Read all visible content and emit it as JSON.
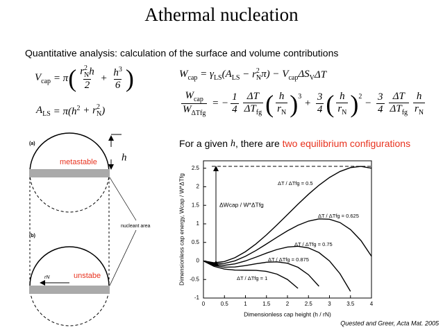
{
  "title": "Athermal nucleation",
  "subtitle": "Quantitative analysis: calculation of the surface and volume contributions",
  "equations": [
    [
      {
        "t": "V",
        "sub": "cap"
      },
      {
        "t": " = π"
      },
      {
        "big": "("
      },
      {
        "num": [
          {
            "t": "r",
            "sub": "N",
            "sup": "2"
          },
          {
            "t": "h"
          }
        ],
        "den": [
          {
            "t": "2"
          }
        ]
      },
      {
        "t": " + "
      },
      {
        "num": [
          {
            "t": "h",
            "sup": "3"
          }
        ],
        "den": [
          {
            "t": "6"
          }
        ]
      },
      {
        "big": ")"
      }
    ],
    [
      {
        "t": "A",
        "sub": "LS"
      },
      {
        "t": " = π(h",
        "sup": "2"
      },
      {
        "t": " + r",
        "sub": "N",
        "sup": "2"
      },
      {
        "t": ")"
      }
    ],
    [
      {
        "t": "W",
        "sub": "cap"
      },
      {
        "t": " = γ",
        "sub": "LS"
      },
      {
        "t": "(A",
        "sub": "LS"
      },
      {
        "t": " − r",
        "sub": "N",
        "sup": "2"
      },
      {
        "t": "π) − V",
        "sub": "cap"
      },
      {
        "t": "ΔS",
        "sub": "V"
      },
      {
        "t": "ΔT"
      }
    ],
    [
      {
        "num": [
          {
            "t": "W",
            "sub": "cap"
          }
        ],
        "den": [
          {
            "t": "W",
            "sub": "ΔTfg"
          }
        ]
      },
      {
        "t": " = −"
      },
      {
        "num": [
          {
            "t": "1"
          }
        ],
        "den": [
          {
            "t": "4"
          }
        ]
      },
      {
        "num": [
          {
            "t": "ΔT"
          }
        ],
        "den": [
          {
            "t": "ΔT",
            "sub": "fg"
          }
        ]
      },
      {
        "big": "("
      },
      {
        "num": [
          {
            "t": "h"
          }
        ],
        "den": [
          {
            "t": "r",
            "sub": "N"
          }
        ]
      },
      {
        "big": ")",
        "sup": "3"
      },
      {
        "t": " + "
      },
      {
        "num": [
          {
            "t": "3"
          }
        ],
        "den": [
          {
            "t": "4"
          }
        ]
      },
      {
        "big": "("
      },
      {
        "num": [
          {
            "t": "h"
          }
        ],
        "den": [
          {
            "t": "r",
            "sub": "N"
          }
        ]
      },
      {
        "big": ")",
        "sup": "2"
      },
      {
        "t": " − "
      },
      {
        "num": [
          {
            "t": "3"
          }
        ],
        "den": [
          {
            "t": "4"
          }
        ]
      },
      {
        "num": [
          {
            "t": "ΔT"
          }
        ],
        "den": [
          {
            "t": "ΔT",
            "sub": "fg"
          }
        ]
      },
      {
        "num": [
          {
            "t": "h"
          }
        ],
        "den": [
          {
            "t": "r",
            "sub": "N"
          }
        ]
      }
    ]
  ],
  "statement": {
    "before": "For a given ",
    "h": "h",
    "after": ", there are ",
    "highlight": "two equilibrium configurations"
  },
  "diagram": {
    "panel_a": "(a)",
    "panel_b": "(b)",
    "metastable": "metastable",
    "unstable": "unstabe",
    "h": "h",
    "rN": "rN",
    "nucleant_area": "nucleant area"
  },
  "citation": "Quested and Greer, Acta Mat. 2005",
  "chart_data": {
    "type": "line",
    "xlabel": "Dimensionless cap height (h / rN)",
    "ylabel": "Dimensionless cap energy,   Wcap / W*ΔTfg",
    "x": [
      0,
      0.25,
      0.5,
      0.75,
      1,
      1.25,
      1.5,
      1.75,
      2,
      2.25,
      2.5,
      2.75,
      3,
      3.25,
      3.5,
      3.75,
      4
    ],
    "series": [
      {
        "name": "ΔT / ΔTfg = 0.5",
        "color": "#000000",
        "values": [
          0,
          -0.049,
          -0.016,
          0.088,
          0.25,
          0.459,
          0.703,
          0.971,
          1.25,
          1.529,
          1.797,
          2.041,
          2.25,
          2.412,
          2.516,
          2.549,
          2.5
        ]
      },
      {
        "name": "ΔT / ΔTfg = 0.625",
        "color": "#000000",
        "values": [
          0,
          -0.073,
          -0.066,
          0.004,
          0.125,
          0.281,
          0.457,
          0.639,
          0.813,
          0.962,
          1.074,
          1.133,
          1.125,
          1.035,
          0.848,
          0.549,
          0.125
        ]
      },
      {
        "name": "ΔT / ΔTfg = 0.75",
        "color": "#000000",
        "values": [
          0,
          -0.097,
          -0.117,
          -0.079,
          0,
          0.103,
          0.211,
          0.308,
          0.375,
          0.396,
          0.352,
          0.226,
          0,
          -0.343,
          -0.82,
          null,
          null
        ]
      },
      {
        "name": "ΔT / ΔTfg = 0.875",
        "color": "#000000",
        "values": [
          0,
          -0.121,
          -0.168,
          -0.163,
          -0.125,
          -0.076,
          -0.035,
          -0.024,
          -0.063,
          -0.171,
          -0.371,
          -0.682,
          null,
          null,
          null,
          null,
          null
        ]
      },
      {
        "name": "ΔT / ΔTfg = 1",
        "color": "#000000",
        "values": [
          0,
          -0.145,
          -0.219,
          -0.246,
          -0.25,
          -0.254,
          -0.281,
          -0.355,
          -0.5,
          -0.738,
          null,
          null,
          null,
          null,
          null,
          null,
          null
        ]
      }
    ],
    "annotation": {
      "text": "ΔWcap / W*ΔTfg",
      "from": 0,
      "to": 2.55
    },
    "xlim": [
      0,
      4
    ],
    "ylim": [
      -1,
      2.7
    ],
    "xticks": [
      0,
      0.5,
      1,
      1.5,
      2,
      2.5,
      3,
      3.5,
      4
    ],
    "yticks": [
      -1,
      -0.5,
      0,
      0.5,
      1,
      1.5,
      2,
      2.5
    ]
  }
}
